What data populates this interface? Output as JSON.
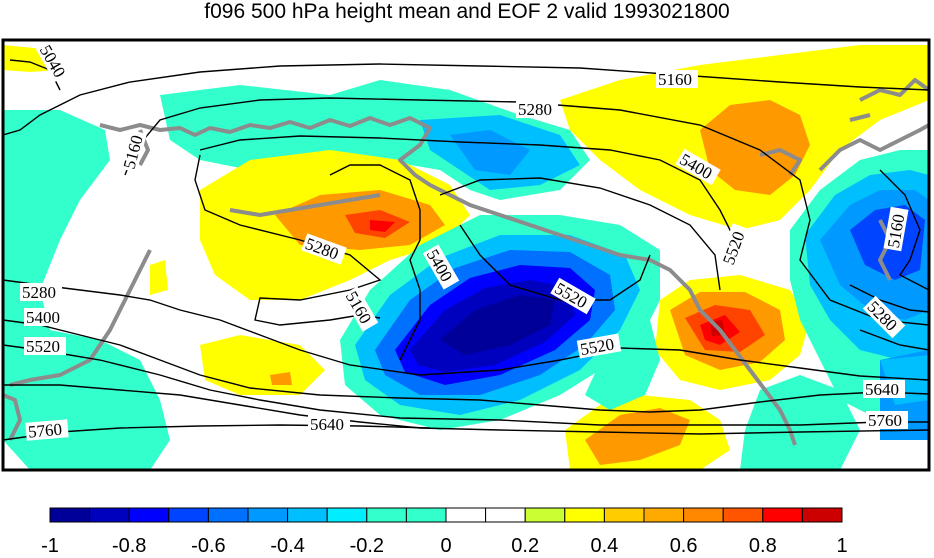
{
  "title": "f096 500 hPa height mean and EOF 2 valid 1993021800",
  "palette": {
    "c1": "#000099",
    "c2": "#0000bf",
    "c3": "#0000ff",
    "c4": "#0044ff",
    "c5": "#0070ff",
    "c6": "#0099ff",
    "c7": "#00bfff",
    "c8": "#00eeff",
    "c9": "#33ffcc",
    "c10": "#ffffff",
    "c11": "#ffffff",
    "c12": "#ccff33",
    "c13": "#ffff00",
    "c14": "#ffcc00",
    "c15": "#ff9900",
    "c16": "#ff7700",
    "c17": "#ff4400",
    "c18": "#ff0000",
    "c19": "#cc0000",
    "c20": "#990000"
  },
  "contour_labels": [
    {
      "text": "5040",
      "rotate": 60
    },
    {
      "text": "5160",
      "rotate": -75
    },
    {
      "text": "5160",
      "rotate": 0
    },
    {
      "text": "5280",
      "rotate": 0
    },
    {
      "text": "5400",
      "rotate": 30
    },
    {
      "text": "5280",
      "rotate": 20
    },
    {
      "text": "5400",
      "rotate": 60
    },
    {
      "text": "5160",
      "rotate": 60
    },
    {
      "text": "5520",
      "rotate": 30
    },
    {
      "text": "5520",
      "rotate": -70
    },
    {
      "text": "5160",
      "rotate": -80
    },
    {
      "text": "5280",
      "rotate": 45
    },
    {
      "text": "5520",
      "rotate": -10
    },
    {
      "text": "5640",
      "rotate": 0
    },
    {
      "text": "5760",
      "rotate": 0
    },
    {
      "text": "5640",
      "rotate": 0
    },
    {
      "text": "5760",
      "rotate": -5
    },
    {
      "text": "5280",
      "rotate": 0
    },
    {
      "text": "5400",
      "rotate": 0
    },
    {
      "text": "5520",
      "rotate": 0
    }
  ],
  "colorbar": {
    "ticks": [
      "-1",
      "-0.8",
      "-0.6",
      "-0.4",
      "-0.2",
      "0",
      "0.2",
      "0.4",
      "0.6",
      "0.8",
      "1"
    ],
    "colors": [
      "#000099",
      "#0000bf",
      "#0000ff",
      "#0044ff",
      "#0070ff",
      "#0099ff",
      "#00bfff",
      "#00eeff",
      "#33ffcc",
      "#33ffcc",
      "#ffffff",
      "#ffffff",
      "#ccff33",
      "#ffff00",
      "#ffcc00",
      "#ffaa00",
      "#ff8800",
      "#ff5500",
      "#ff0000",
      "#cc0000"
    ]
  }
}
